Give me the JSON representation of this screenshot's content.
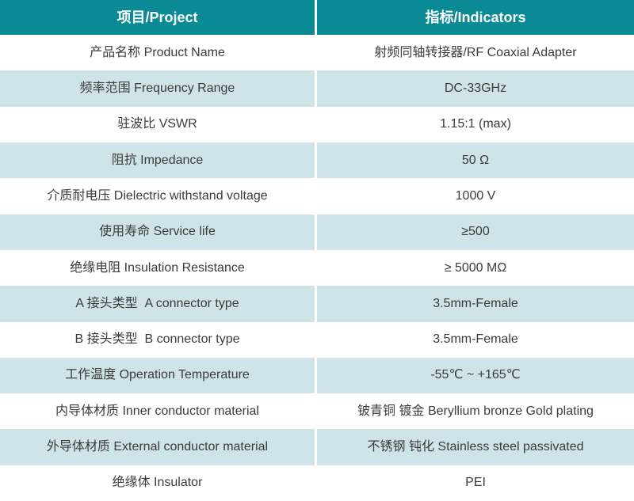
{
  "colors": {
    "header_bg": "#0a8a94",
    "header_text": "#ffffff",
    "row_bg": "#ffffff",
    "row_alt_bg": "#cfe4e8",
    "body_text": "#3b3b3b"
  },
  "table": {
    "header": {
      "project": "项目/Project",
      "indicators": "指标/Indicators"
    },
    "rows": [
      {
        "project": "产品名称 Product Name",
        "indicator": "射频同轴转接器/RF Coaxial Adapter"
      },
      {
        "project": "频率范围 Frequency Range",
        "indicator": "DC-33GHz"
      },
      {
        "project": "驻波比 VSWR",
        "indicator": "1.15:1 (max)"
      },
      {
        "project": "阻抗 Impedance",
        "indicator": "50 Ω"
      },
      {
        "project": "介质耐电压 Dielectric withstand voltage",
        "indicator": "1000 V"
      },
      {
        "project": "使用寿命 Service life",
        "indicator": "≥500"
      },
      {
        "project": "绝缘电阻 Insulation Resistance",
        "indicator": "≥ 5000 MΩ"
      },
      {
        "project": "A 接头类型  A connector type",
        "indicator": "3.5mm-Female"
      },
      {
        "project": "B 接头类型  B connector type",
        "indicator": "3.5mm-Female"
      },
      {
        "project": "工作温度 Operation Temperature",
        "indicator": "-55℃ ~ +165℃"
      },
      {
        "project": "内导体材质 Inner conductor material",
        "indicator": "铍青铜 镀金 Beryllium bronze Gold plating"
      },
      {
        "project": "外导体材质 External conductor material",
        "indicator": "不锈钢 钝化 Stainless steel passivated"
      },
      {
        "project": "绝缘体 Insulator",
        "indicator": "PEI"
      }
    ]
  }
}
